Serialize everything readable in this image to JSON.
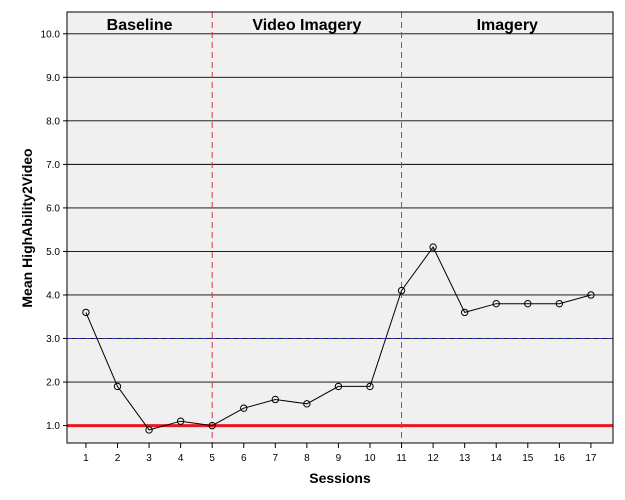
{
  "chart_data": {
    "type": "line",
    "xlabel": "Sessions",
    "ylabel": "Mean HighAbility2Video",
    "x": [
      1,
      2,
      3,
      4,
      5,
      6,
      7,
      8,
      9,
      10,
      11,
      12,
      13,
      14,
      15,
      16,
      17
    ],
    "values": [
      3.6,
      1.9,
      0.9,
      1.1,
      1.0,
      1.4,
      1.6,
      1.5,
      1.9,
      1.9,
      4.1,
      5.1,
      3.6,
      3.8,
      3.8,
      3.8,
      4.0
    ],
    "xlim": [
      0.4,
      17.7
    ],
    "ylim": [
      0.6,
      10.5
    ],
    "yticks": [
      1.0,
      2.0,
      3.0,
      4.0,
      5.0,
      6.0,
      7.0,
      8.0,
      9.0,
      10.0
    ],
    "ytick_labels": [
      "1.0",
      "2.0",
      "3.0",
      "4.0",
      "5.0",
      "6.0",
      "7.0",
      "8.0",
      "9.0",
      "10.0"
    ],
    "xtick_labels": [
      "1",
      "2",
      "3",
      "4",
      "5",
      "6",
      "7",
      "8",
      "9",
      "10",
      "11",
      "12",
      "13",
      "14",
      "15",
      "16",
      "17"
    ],
    "phases": [
      {
        "label": "Baseline",
        "start": 0.4,
        "end": 5
      },
      {
        "label": "Video Imagery",
        "start": 5,
        "end": 11
      },
      {
        "label": "Imagery",
        "start": 11,
        "end": 17.7
      }
    ],
    "phase_change_lines": [
      5,
      11
    ],
    "reference_lines": [
      {
        "y": 1.0,
        "color": "#e8191f",
        "style": "solid"
      },
      {
        "y": 3.0,
        "color": "#2c2cbe",
        "style": "dashed"
      }
    ],
    "phase_line_color": "#e0303a",
    "grid": true,
    "line_color": "#000000",
    "plot_background": "#f0f0f0"
  }
}
